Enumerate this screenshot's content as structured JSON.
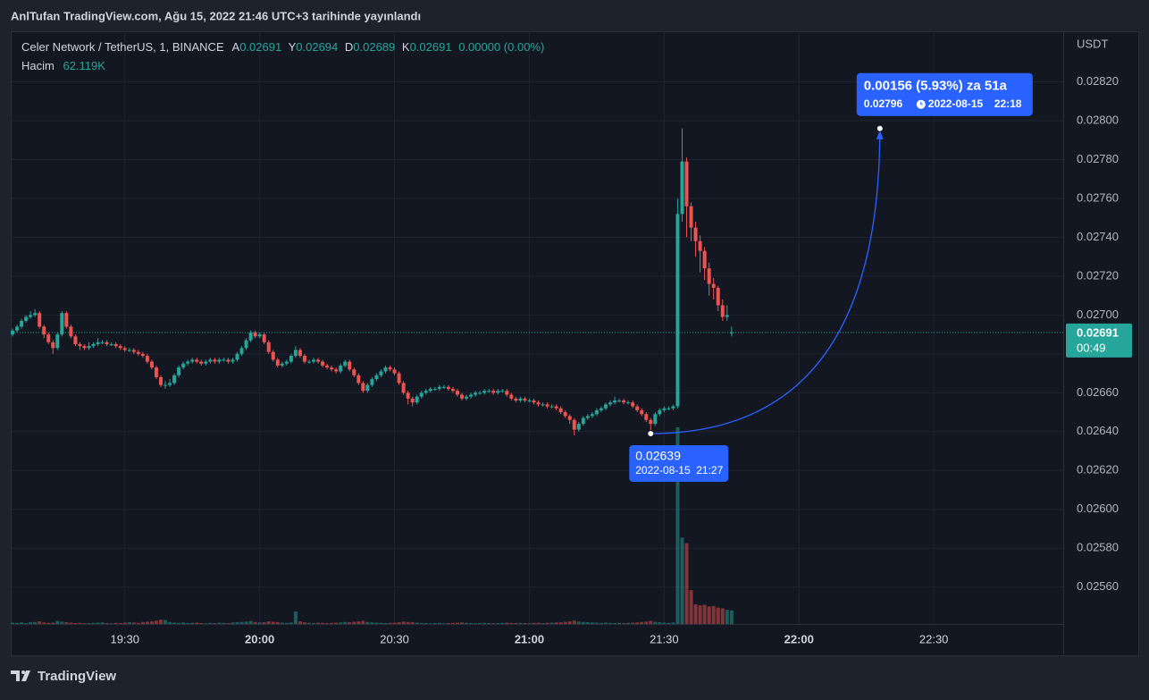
{
  "publisher": "AnlTufan TradingView.com, Ağu 15, 2022 21:46 UTC+3 tarihinde yayınlandı",
  "footer": {
    "brand": "TradingView"
  },
  "chart_data": {
    "type": "candlestick",
    "legend": {
      "symbol": "Celer Network / TetherUS, 1, BINANCE",
      "open_label": "A",
      "high_label": "Y",
      "low_label": "D",
      "close_label": "K",
      "change": "0.00000 (0.00%)",
      "volume_name": "Hacim",
      "volume_label": "62.119K"
    },
    "y_unit": "USDT",
    "countdown": "00:49",
    "x": [
      "19:05",
      "19:06",
      "19:07",
      "19:08",
      "19:09",
      "19:10",
      "19:11",
      "19:12",
      "19:13",
      "19:14",
      "19:15",
      "19:16",
      "19:17",
      "19:18",
      "19:19",
      "19:20",
      "19:21",
      "19:22",
      "19:23",
      "19:24",
      "19:25",
      "19:26",
      "19:27",
      "19:28",
      "19:29",
      "19:30",
      "19:31",
      "19:32",
      "19:33",
      "19:34",
      "19:35",
      "19:36",
      "19:37",
      "19:38",
      "19:39",
      "19:40",
      "19:41",
      "19:42",
      "19:43",
      "19:44",
      "19:45",
      "19:46",
      "19:47",
      "19:48",
      "19:49",
      "19:50",
      "19:51",
      "19:52",
      "19:53",
      "19:54",
      "19:55",
      "19:56",
      "19:57",
      "19:58",
      "19:59",
      "20:00",
      "20:01",
      "20:02",
      "20:03",
      "20:04",
      "20:05",
      "20:06",
      "20:07",
      "20:08",
      "20:09",
      "20:10",
      "20:11",
      "20:12",
      "20:13",
      "20:14",
      "20:15",
      "20:16",
      "20:17",
      "20:18",
      "20:19",
      "20:20",
      "20:21",
      "20:22",
      "20:23",
      "20:24",
      "20:25",
      "20:26",
      "20:27",
      "20:28",
      "20:29",
      "20:30",
      "20:31",
      "20:32",
      "20:33",
      "20:34",
      "20:35",
      "20:36",
      "20:37",
      "20:38",
      "20:39",
      "20:40",
      "20:41",
      "20:42",
      "20:43",
      "20:44",
      "20:45",
      "20:46",
      "20:47",
      "20:48",
      "20:49",
      "20:50",
      "20:51",
      "20:52",
      "20:53",
      "20:54",
      "20:55",
      "20:56",
      "20:57",
      "20:58",
      "20:59",
      "21:00",
      "21:01",
      "21:02",
      "21:03",
      "21:04",
      "21:05",
      "21:06",
      "21:07",
      "21:08",
      "21:09",
      "21:10",
      "21:11",
      "21:12",
      "21:13",
      "21:14",
      "21:15",
      "21:16",
      "21:17",
      "21:18",
      "21:19",
      "21:20",
      "21:21",
      "21:22",
      "21:23",
      "21:24",
      "21:25",
      "21:26",
      "21:27",
      "21:28",
      "21:29",
      "21:30",
      "21:31",
      "21:32",
      "21:33",
      "21:34",
      "21:35",
      "21:36",
      "21:37",
      "21:38",
      "21:39",
      "21:40",
      "21:41",
      "21:42",
      "21:43",
      "21:44",
      "21:45"
    ],
    "open": [
      0.0269,
      0.02692,
      0.02694,
      0.02697,
      0.02699,
      0.027,
      0.02701,
      0.02694,
      0.0269,
      0.02686,
      0.02683,
      0.0269,
      0.02701,
      0.02694,
      0.02689,
      0.02685,
      0.02684,
      0.02683,
      0.02684,
      0.02685,
      0.02686,
      0.02686,
      0.02685,
      0.02685,
      0.02684,
      0.02683,
      0.02682,
      0.02682,
      0.02681,
      0.0268,
      0.02679,
      0.02676,
      0.02673,
      0.02668,
      0.02664,
      0.02664,
      0.02665,
      0.02669,
      0.02673,
      0.02675,
      0.02676,
      0.02677,
      0.02676,
      0.02675,
      0.02676,
      0.02677,
      0.02676,
      0.02677,
      0.02677,
      0.02676,
      0.02677,
      0.0268,
      0.02683,
      0.02687,
      0.02691,
      0.02689,
      0.0269,
      0.02686,
      0.02681,
      0.02677,
      0.02674,
      0.02675,
      0.02676,
      0.02679,
      0.02682,
      0.02679,
      0.02676,
      0.02676,
      0.02677,
      0.02676,
      0.02674,
      0.02673,
      0.02672,
      0.02671,
      0.02674,
      0.02676,
      0.02672,
      0.02669,
      0.02665,
      0.02661,
      0.02664,
      0.02667,
      0.02669,
      0.02671,
      0.02673,
      0.02672,
      0.0267,
      0.02665,
      0.0266,
      0.02657,
      0.02655,
      0.02658,
      0.0266,
      0.02661,
      0.02662,
      0.02662,
      0.02663,
      0.02663,
      0.02662,
      0.02661,
      0.02659,
      0.02657,
      0.02658,
      0.02659,
      0.0266,
      0.0266,
      0.02661,
      0.02661,
      0.0266,
      0.02661,
      0.02661,
      0.02659,
      0.02657,
      0.02656,
      0.02657,
      0.02656,
      0.02656,
      0.02655,
      0.02654,
      0.02654,
      0.02653,
      0.02653,
      0.02652,
      0.0265,
      0.02648,
      0.02646,
      0.02641,
      0.02644,
      0.02647,
      0.02648,
      0.02649,
      0.02651,
      0.02652,
      0.02654,
      0.02655,
      0.02656,
      0.02656,
      0.02655,
      0.02655,
      0.02653,
      0.02651,
      0.02649,
      0.02646,
      0.02644,
      0.02649,
      0.02651,
      0.02652,
      0.02652,
      0.02653,
      0.02752,
      0.02779,
      0.02756,
      0.02745,
      0.02738,
      0.02733,
      0.02724,
      0.02716,
      0.02714,
      0.02705,
      0.02699,
      0.02691
    ],
    "high": [
      0.02693,
      0.02695,
      0.02698,
      0.027,
      0.02702,
      0.02703,
      0.02702,
      0.02695,
      0.02691,
      0.02687,
      0.02691,
      0.02702,
      0.02702,
      0.02695,
      0.0269,
      0.02686,
      0.02685,
      0.02686,
      0.02686,
      0.02688,
      0.02687,
      0.02687,
      0.02686,
      0.02686,
      0.02685,
      0.02684,
      0.02683,
      0.02683,
      0.02682,
      0.02681,
      0.0268,
      0.02677,
      0.02674,
      0.02669,
      0.02666,
      0.02667,
      0.0267,
      0.02674,
      0.02676,
      0.02677,
      0.02678,
      0.02678,
      0.02677,
      0.02677,
      0.02678,
      0.02678,
      0.02678,
      0.02678,
      0.02678,
      0.02678,
      0.02681,
      0.02684,
      0.02688,
      0.02692,
      0.02692,
      0.02691,
      0.02691,
      0.02687,
      0.02682,
      0.02678,
      0.02676,
      0.02677,
      0.0268,
      0.02684,
      0.02683,
      0.0268,
      0.02677,
      0.02678,
      0.02678,
      0.02677,
      0.02675,
      0.02674,
      0.02673,
      0.02675,
      0.02677,
      0.02677,
      0.02673,
      0.0267,
      0.02666,
      0.02665,
      0.02668,
      0.0267,
      0.02672,
      0.02674,
      0.02674,
      0.02673,
      0.02671,
      0.02666,
      0.02661,
      0.02658,
      0.02659,
      0.02661,
      0.02662,
      0.02663,
      0.02663,
      0.02664,
      0.02664,
      0.02664,
      0.02663,
      0.02662,
      0.0266,
      0.02659,
      0.0266,
      0.02661,
      0.02661,
      0.02662,
      0.02662,
      0.02662,
      0.02662,
      0.02662,
      0.02662,
      0.0266,
      0.02658,
      0.02658,
      0.02658,
      0.02657,
      0.02657,
      0.02656,
      0.02655,
      0.02655,
      0.02654,
      0.02654,
      0.02653,
      0.02651,
      0.02649,
      0.02647,
      0.02645,
      0.02648,
      0.02649,
      0.0265,
      0.02652,
      0.02653,
      0.02655,
      0.02656,
      0.02658,
      0.02657,
      0.02657,
      0.02656,
      0.02656,
      0.02654,
      0.02652,
      0.0265,
      0.02647,
      0.0265,
      0.02652,
      0.02653,
      0.02653,
      0.02654,
      0.0276,
      0.02796,
      0.02781,
      0.02758,
      0.02748,
      0.02741,
      0.02735,
      0.02727,
      0.02719,
      0.02715,
      0.02708,
      0.02705,
      0.02694
    ],
    "low": [
      0.02689,
      0.02691,
      0.02693,
      0.02696,
      0.02698,
      0.02699,
      0.02693,
      0.02688,
      0.02685,
      0.0268,
      0.02682,
      0.02689,
      0.02693,
      0.02688,
      0.02684,
      0.02682,
      0.02682,
      0.02682,
      0.02683,
      0.02684,
      0.02685,
      0.02684,
      0.02684,
      0.02683,
      0.02682,
      0.02681,
      0.02681,
      0.0268,
      0.02679,
      0.02678,
      0.02675,
      0.02672,
      0.02667,
      0.02663,
      0.02662,
      0.02663,
      0.02664,
      0.02668,
      0.02672,
      0.02674,
      0.02675,
      0.02675,
      0.02674,
      0.02674,
      0.02675,
      0.02675,
      0.02675,
      0.02676,
      0.02675,
      0.02675,
      0.02676,
      0.02679,
      0.02682,
      0.02686,
      0.02688,
      0.02688,
      0.02685,
      0.0268,
      0.02676,
      0.02673,
      0.02673,
      0.02674,
      0.02675,
      0.02678,
      0.02678,
      0.02675,
      0.02675,
      0.02675,
      0.02675,
      0.02673,
      0.02672,
      0.02671,
      0.0267,
      0.0267,
      0.02673,
      0.02671,
      0.02668,
      0.02664,
      0.0266,
      0.0266,
      0.02663,
      0.02666,
      0.02668,
      0.0267,
      0.02671,
      0.02669,
      0.02664,
      0.02659,
      0.02654,
      0.02653,
      0.02654,
      0.02657,
      0.02659,
      0.0266,
      0.02661,
      0.02661,
      0.02662,
      0.02661,
      0.0266,
      0.02658,
      0.02656,
      0.02656,
      0.02657,
      0.02658,
      0.02659,
      0.02659,
      0.0266,
      0.02659,
      0.02659,
      0.0266,
      0.02658,
      0.02656,
      0.02655,
      0.02655,
      0.02655,
      0.02655,
      0.02654,
      0.02653,
      0.02653,
      0.02652,
      0.02652,
      0.02651,
      0.02649,
      0.02647,
      0.02644,
      0.02638,
      0.0264,
      0.02643,
      0.02646,
      0.02647,
      0.02648,
      0.0265,
      0.02651,
      0.02653,
      0.02654,
      0.02655,
      0.02654,
      0.02654,
      0.02652,
      0.0265,
      0.02648,
      0.02645,
      0.02639,
      0.02643,
      0.02648,
      0.0265,
      0.02651,
      0.02651,
      0.02652,
      0.02748,
      0.0274,
      0.02738,
      0.0273,
      0.02722,
      0.02718,
      0.0271,
      0.02708,
      0.02702,
      0.02697,
      0.02697,
      0.02689
    ],
    "close": [
      0.02692,
      0.02694,
      0.02697,
      0.02699,
      0.027,
      0.02701,
      0.02694,
      0.0269,
      0.02686,
      0.02683,
      0.0269,
      0.02701,
      0.02694,
      0.02689,
      0.02685,
      0.02684,
      0.02683,
      0.02684,
      0.02685,
      0.02686,
      0.02686,
      0.02685,
      0.02685,
      0.02684,
      0.02683,
      0.02682,
      0.02682,
      0.02681,
      0.0268,
      0.02679,
      0.02676,
      0.02673,
      0.02668,
      0.02664,
      0.02664,
      0.02665,
      0.02669,
      0.02673,
      0.02675,
      0.02676,
      0.02677,
      0.02676,
      0.02675,
      0.02676,
      0.02677,
      0.02676,
      0.02677,
      0.02677,
      0.02676,
      0.02677,
      0.0268,
      0.02683,
      0.02687,
      0.02691,
      0.02689,
      0.0269,
      0.02686,
      0.02681,
      0.02677,
      0.02674,
      0.02675,
      0.02676,
      0.02679,
      0.02682,
      0.02679,
      0.02676,
      0.02676,
      0.02677,
      0.02676,
      0.02674,
      0.02673,
      0.02672,
      0.02671,
      0.02674,
      0.02676,
      0.02672,
      0.02669,
      0.02665,
      0.02661,
      0.02664,
      0.02667,
      0.02669,
      0.02671,
      0.02673,
      0.02672,
      0.0267,
      0.02665,
      0.0266,
      0.02657,
      0.02655,
      0.02658,
      0.0266,
      0.02661,
      0.02662,
      0.02662,
      0.02663,
      0.02663,
      0.02662,
      0.02661,
      0.02659,
      0.02657,
      0.02658,
      0.02659,
      0.0266,
      0.0266,
      0.02661,
      0.02661,
      0.0266,
      0.02661,
      0.02661,
      0.02659,
      0.02657,
      0.02656,
      0.02657,
      0.02656,
      0.02656,
      0.02655,
      0.02654,
      0.02654,
      0.02653,
      0.02653,
      0.02652,
      0.0265,
      0.02648,
      0.02646,
      0.02641,
      0.02644,
      0.02647,
      0.02648,
      0.02649,
      0.02651,
      0.02652,
      0.02654,
      0.02655,
      0.02656,
      0.02656,
      0.02655,
      0.02655,
      0.02653,
      0.02651,
      0.02649,
      0.02646,
      0.02644,
      0.02649,
      0.02651,
      0.02652,
      0.02652,
      0.02653,
      0.02752,
      0.02779,
      0.02756,
      0.02745,
      0.02738,
      0.02733,
      0.02724,
      0.02716,
      0.02714,
      0.02705,
      0.02699,
      0.027,
      0.02691
    ],
    "volume": [
      6000,
      5000,
      7000,
      4000,
      8000,
      9000,
      12000,
      7000,
      5000,
      6000,
      14000,
      11000,
      8000,
      6000,
      4000,
      5000,
      3000,
      4000,
      5000,
      6000,
      7000,
      4000,
      3000,
      5000,
      4000,
      6000,
      8000,
      7000,
      5000,
      9000,
      10000,
      12000,
      15000,
      20000,
      18000,
      9000,
      6000,
      5000,
      7000,
      4000,
      5000,
      6000,
      4000,
      3000,
      5000,
      4000,
      6000,
      5000,
      4000,
      7000,
      8000,
      9000,
      11000,
      14000,
      9000,
      7000,
      8000,
      12000,
      10000,
      9000,
      6000,
      5000,
      7000,
      57000,
      12000,
      8000,
      5000,
      4000,
      6000,
      5000,
      4000,
      5000,
      6000,
      7000,
      9000,
      8000,
      10000,
      12000,
      14000,
      9000,
      7000,
      6000,
      5000,
      4000,
      5000,
      6000,
      8000,
      11000,
      9000,
      8000,
      6000,
      5000,
      4000,
      3000,
      4000,
      5000,
      3000,
      4000,
      5000,
      6000,
      7000,
      5000,
      4000,
      3000,
      4000,
      5000,
      4000,
      3000,
      4000,
      5000,
      6000,
      5000,
      4000,
      5000,
      4000,
      3000,
      5000,
      6000,
      4000,
      5000,
      6000,
      7000,
      8000,
      10000,
      12000,
      15000,
      11000,
      9000,
      8000,
      7000,
      6000,
      5000,
      6000,
      5000,
      4000,
      5000,
      4000,
      5000,
      6000,
      7000,
      9000,
      11000,
      14000,
      10000,
      8000,
      6000,
      5000,
      7000,
      900000,
      395000,
      370000,
      155000,
      90000,
      85000,
      88000,
      80000,
      82000,
      75000,
      72000,
      65000,
      62119
    ],
    "up_color": "#26a69a",
    "down_color": "#ef5350",
    "ylim": [
      0.02541,
      0.02846
    ],
    "yticks": [
      {
        "value": 0.0256,
        "label": "0.02560"
      },
      {
        "value": 0.0258,
        "label": "0.02580"
      },
      {
        "value": 0.026,
        "label": "0.02600"
      },
      {
        "value": 0.0262,
        "label": "0.02620"
      },
      {
        "value": 0.0264,
        "label": "0.02640"
      },
      {
        "value": 0.0266,
        "label": "0.02660"
      },
      {
        "value": 0.0268,
        "label": "0.02680"
      },
      {
        "value": 0.027,
        "label": "0.02700"
      },
      {
        "value": 0.0272,
        "label": "0.02720"
      },
      {
        "value": 0.0274,
        "label": "0.02740"
      },
      {
        "value": 0.0276,
        "label": "0.02760"
      },
      {
        "value": 0.0278,
        "label": "0.02780"
      },
      {
        "value": 0.028,
        "label": "0.02800"
      },
      {
        "value": 0.0282,
        "label": "0.02820"
      }
    ],
    "xticks": [
      "19:30",
      "20:00",
      "20:30",
      "21:00",
      "21:30",
      "22:00",
      "22:30"
    ],
    "grid": true,
    "annotation": {
      "headline": "0.00156 (5.93%) za 51a",
      "color": "#2962ff",
      "from": {
        "price": 0.02639,
        "date": "2022-08-15",
        "time": "21:27"
      },
      "to": {
        "price": 0.02796,
        "date": "2022-08-15",
        "time": "22:18"
      }
    }
  }
}
